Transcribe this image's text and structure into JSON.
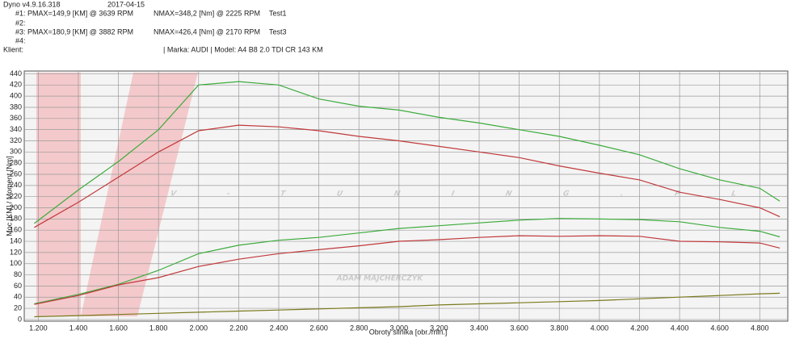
{
  "chart_data": {
    "type": "line",
    "header": {
      "software": "Dyno v4.9.16.318",
      "date": "2017-04-15",
      "run1": "#1: PMAX=149,9 [KM] @ 3639 RPM",
      "run1_torque": "NMAX=348,2 [Nm] @ 2225 RPM",
      "run1_name": "Test1",
      "run2": "#2:",
      "run3": "#3: PMAX=180,9 [KM] @ 3882 RPM",
      "run3_torque": "NMAX=426,4 [Nm] @ 2170 RPM",
      "run3_name": "Test3",
      "run4": "#4:",
      "client": "Klient:",
      "vehicle": "| Marka: AUDI | Model: A4 B8 2.0 TDI CR 143 KM"
    },
    "watermark": "V-TUNING.PL",
    "watermark_sub": "ADAM MAJCHERCZYK",
    "x_label": "Obroty silnika [obr./min.]",
    "y_label": "Moc [KM] / Moment [Nm]",
    "x": [
      1180,
      1400,
      1600,
      1800,
      2000,
      2200,
      2400,
      2600,
      2800,
      3000,
      3200,
      3400,
      3600,
      3800,
      4000,
      4200,
      4400,
      4600,
      4800,
      4900
    ],
    "series": [
      {
        "color": "#3cab3c",
        "values": [
          172,
          232,
          283,
          340,
          420,
          426,
          420,
          395,
          382,
          375,
          362,
          352,
          340,
          328,
          312,
          295,
          270,
          250,
          235,
          212
        ]
      },
      {
        "color": "#c0393b",
        "values": [
          165,
          210,
          255,
          300,
          338,
          348,
          345,
          338,
          328,
          320,
          310,
          300,
          290,
          275,
          262,
          250,
          228,
          215,
          200,
          184
        ]
      },
      {
        "color": "#3cab3c",
        "values": [
          28,
          45,
          63,
          88,
          118,
          133,
          142,
          147,
          155,
          163,
          168,
          173,
          178,
          181,
          180,
          179,
          175,
          165,
          158,
          148
        ]
      },
      {
        "color": "#c0393b",
        "values": [
          27,
          43,
          62,
          75,
          95,
          108,
          118,
          125,
          132,
          140,
          143,
          147,
          150,
          149,
          150,
          149,
          140,
          139,
          137,
          128
        ]
      },
      {
        "color": "#7a7a1e",
        "values": [
          5,
          7,
          9,
          11,
          13,
          15,
          17,
          19,
          21,
          23,
          26,
          28,
          30,
          32,
          34,
          37,
          40,
          43,
          46,
          47
        ]
      }
    ],
    "xlim": [
      1130,
      4940
    ],
    "ylim": [
      -3,
      445
    ],
    "xticks": [
      {
        "value": 1200,
        "label": "1.200"
      },
      {
        "value": 1400,
        "label": "1.400"
      },
      {
        "value": 1600,
        "label": "1.600"
      },
      {
        "value": 1800,
        "label": "1.800"
      },
      {
        "value": 2000,
        "label": "2.000"
      },
      {
        "value": 2200,
        "label": "2.200"
      },
      {
        "value": 2400,
        "label": "2.400"
      },
      {
        "value": 2600,
        "label": "2.600"
      },
      {
        "value": 2800,
        "label": "2.800"
      },
      {
        "value": 3000,
        "label": "3.000"
      },
      {
        "value": 3200,
        "label": "3.200"
      },
      {
        "value": 3400,
        "label": "3.400"
      },
      {
        "value": 3600,
        "label": "3.600"
      },
      {
        "value": 3800,
        "label": "3.800"
      },
      {
        "value": 4000,
        "label": "4.000"
      },
      {
        "value": 4200,
        "label": "4.200"
      },
      {
        "value": 4400,
        "label": "4.400"
      },
      {
        "value": 4600,
        "label": "4.600"
      },
      {
        "value": 4800,
        "label": "4.800"
      }
    ],
    "yticks": [
      0,
      20,
      40,
      60,
      80,
      100,
      120,
      140,
      160,
      180,
      200,
      220,
      240,
      260,
      280,
      300,
      320,
      340,
      360,
      380,
      400,
      420,
      440
    ],
    "grid": true
  }
}
